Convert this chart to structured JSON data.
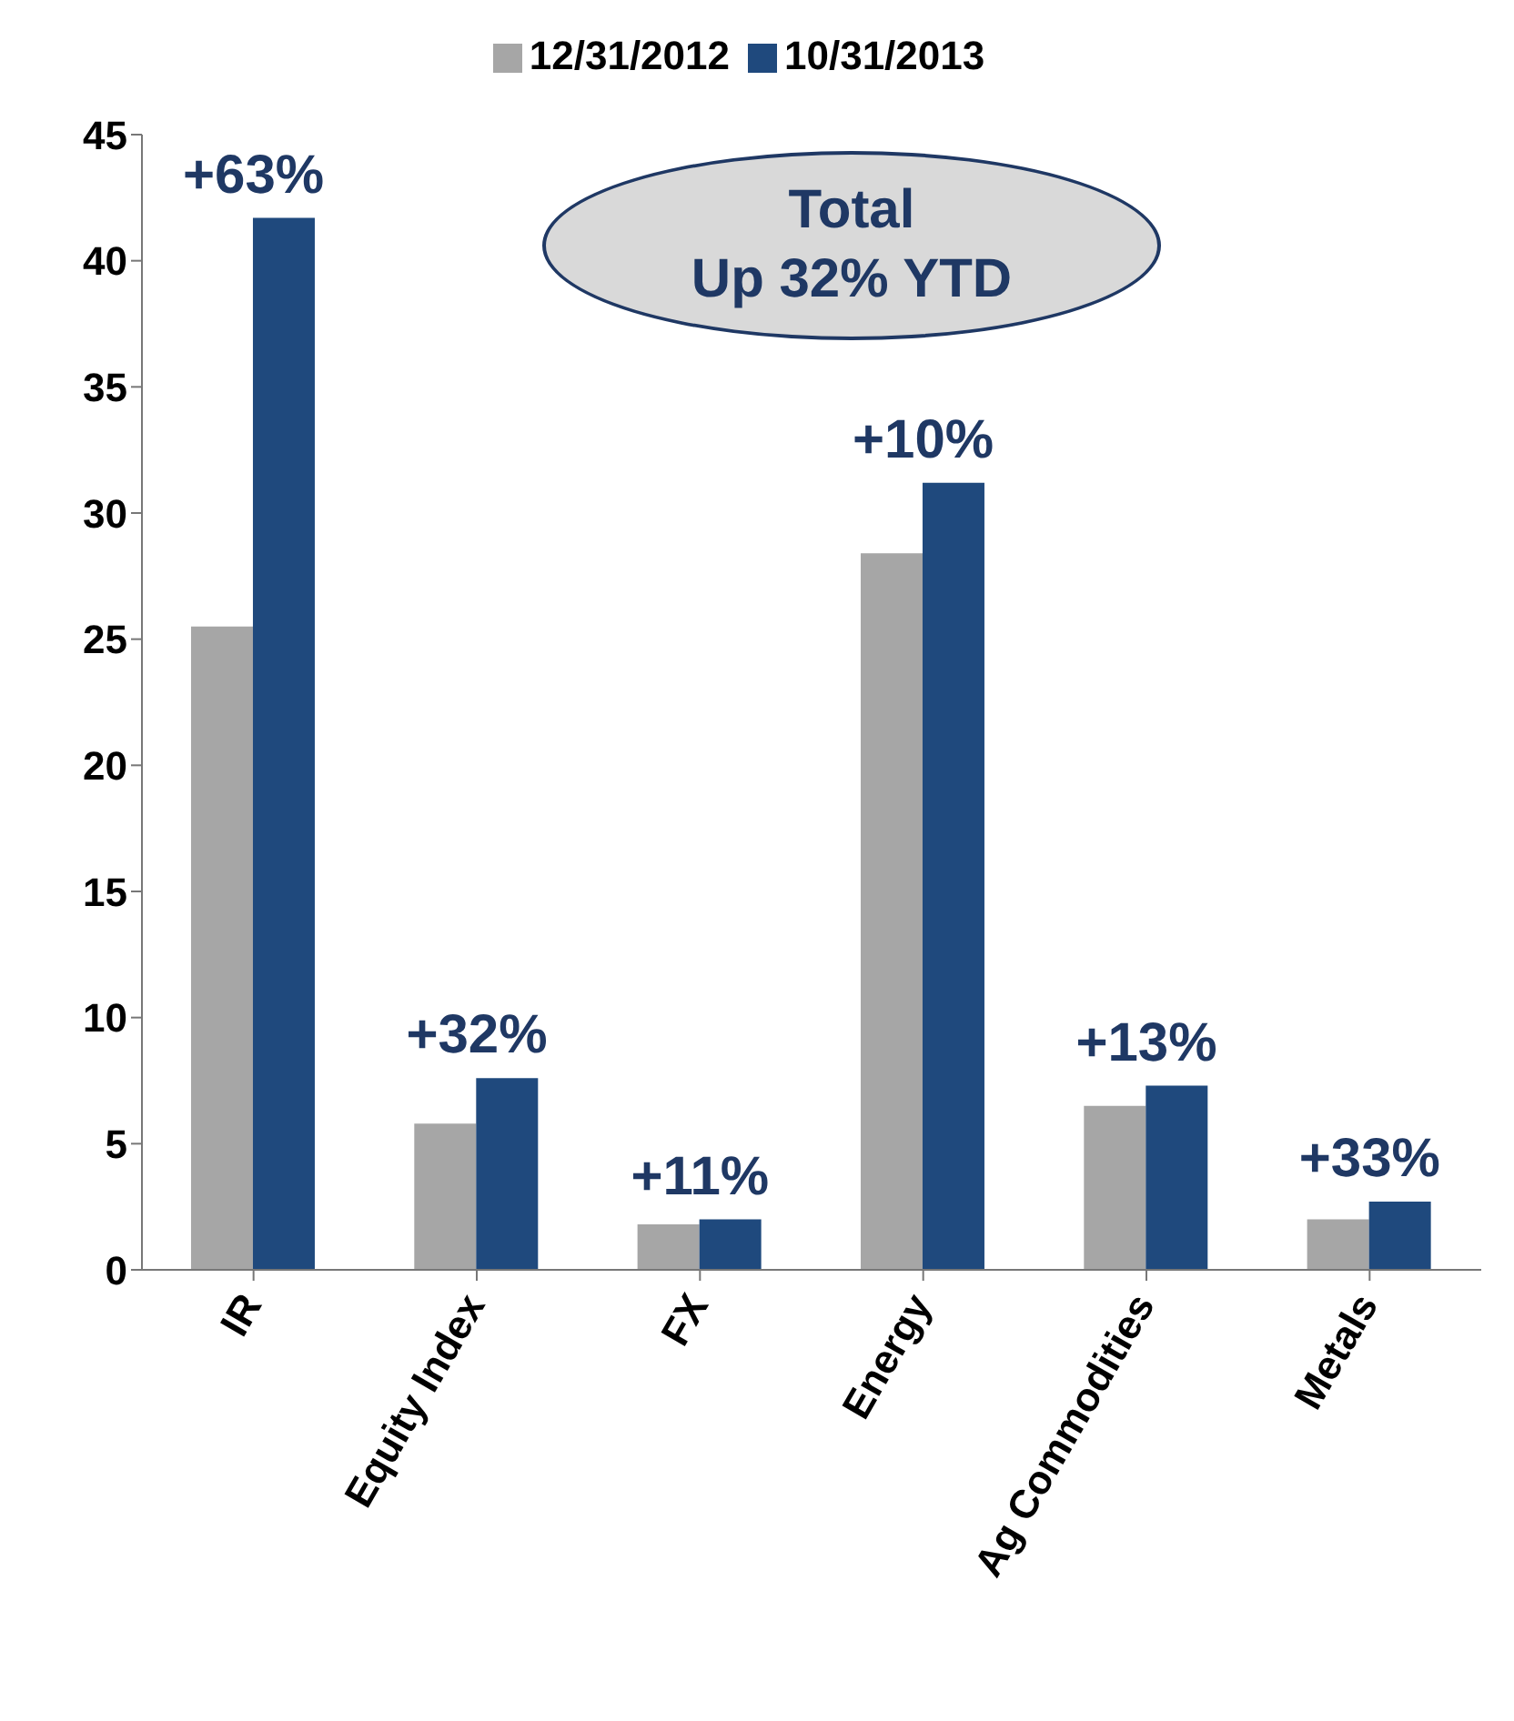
{
  "chart_data": {
    "type": "bar",
    "categories": [
      "IR",
      "Equity Index",
      "FX",
      "Energy",
      "Ag Commodities",
      "Metals"
    ],
    "series": [
      {
        "name": "12/31/2012",
        "color": "#a6a6a6",
        "values": [
          25.5,
          5.8,
          1.8,
          28.4,
          6.5,
          2.0
        ]
      },
      {
        "name": "10/31/2013",
        "color": "#1f497d",
        "values": [
          41.7,
          7.6,
          2.0,
          31.2,
          7.3,
          2.7
        ]
      }
    ],
    "ylim": [
      0,
      45
    ],
    "yticks": [
      0,
      5,
      10,
      15,
      20,
      25,
      30,
      35,
      40,
      45
    ],
    "legend": "top",
    "annotations": [
      {
        "text": "+63%",
        "x": "IR",
        "y": 41.7
      },
      {
        "text": "+32%",
        "x": "Equity Index",
        "y": 7.6
      },
      {
        "text": "+11%",
        "x": "FX",
        "y": 2.0
      },
      {
        "text": "+10%",
        "x": "Energy",
        "y": 31.2
      },
      {
        "text": "+13%",
        "x": "Ag Commodities",
        "y": 7.3
      },
      {
        "text": "+33%",
        "x": "Metals",
        "y": 2.7
      },
      "Total\nUp 32% YTD"
    ]
  }
}
